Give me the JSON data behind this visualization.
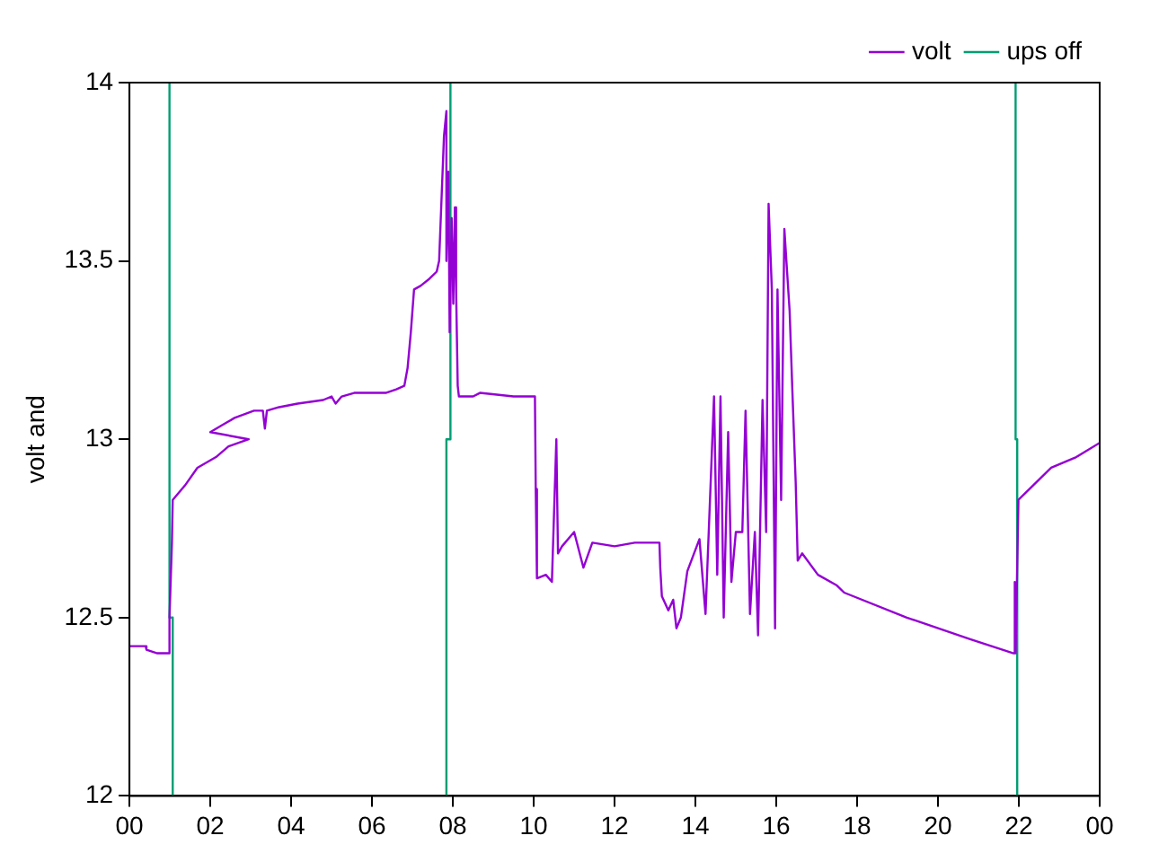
{
  "chart_data": {
    "type": "line",
    "ylabel": "volt and",
    "xlim": [
      0,
      24
    ],
    "ylim": [
      12,
      14
    ],
    "xticks": [
      {
        "value": 0,
        "label": "00"
      },
      {
        "value": 2,
        "label": "02"
      },
      {
        "value": 4,
        "label": "04"
      },
      {
        "value": 6,
        "label": "06"
      },
      {
        "value": 8,
        "label": "08"
      },
      {
        "value": 10,
        "label": "10"
      },
      {
        "value": 12,
        "label": "12"
      },
      {
        "value": 14,
        "label": "14"
      },
      {
        "value": 16,
        "label": "16"
      },
      {
        "value": 18,
        "label": "18"
      },
      {
        "value": 20,
        "label": "20"
      },
      {
        "value": 22,
        "label": "22"
      },
      {
        "value": 24,
        "label": "00"
      }
    ],
    "yticks": [
      12,
      12.5,
      13,
      13.5,
      14
    ],
    "grid": false,
    "legend": "top right",
    "marker": "none",
    "line_style": "solid",
    "series": [
      {
        "name": "volt",
        "color": "#9400d3",
        "x": [
          0,
          0.4,
          0.42,
          0.69,
          0.99,
          0.99,
          1.05,
          1.07,
          1.37,
          1.68,
          2.14,
          2.45,
          2.95,
          2.0,
          2.3,
          2.6,
          3.08,
          3.3,
          3.35,
          3.4,
          3.7,
          4.16,
          4.79,
          5.0,
          5.1,
          5.25,
          5.56,
          6.34,
          6.6,
          6.8,
          6.88,
          6.96,
          7.04,
          7.2,
          7.42,
          7.6,
          7.66,
          7.78,
          7.84,
          7.84,
          7.89,
          7.92,
          7.97,
          8.01,
          8.05,
          8.08,
          8.12,
          8.15,
          8.5,
          8.67,
          9.5,
          10.03,
          10.05,
          10.08,
          10.3,
          10.45,
          10.56,
          10.6,
          10.7,
          11.0,
          11.23,
          11.45,
          12.0,
          12.5,
          13.11,
          13.13,
          13.17,
          13.33,
          13.45,
          13.53,
          13.64,
          13.8,
          14.1,
          14.25,
          14.46,
          14.54,
          14.62,
          14.7,
          14.81,
          14.89,
          15.0,
          15.16,
          15.24,
          15.35,
          15.47,
          15.55,
          15.66,
          15.75,
          15.81,
          15.89,
          15.97,
          16.03,
          16.12,
          16.2,
          16.25,
          16.33,
          16.4,
          16.48,
          16.53,
          16.64,
          17.03,
          17.5,
          17.68,
          19.23,
          20.78,
          21.87,
          21.9,
          21.92,
          21.99,
          22.8,
          23.42,
          24.0
        ],
        "values": [
          12.42,
          12.42,
          12.41,
          12.4,
          12.4,
          12.5,
          12.71,
          12.83,
          12.87,
          12.92,
          12.95,
          12.98,
          13.0,
          13.02,
          13.04,
          13.06,
          13.08,
          13.08,
          13.03,
          13.08,
          13.09,
          13.1,
          13.11,
          13.12,
          13.1,
          13.12,
          13.13,
          13.13,
          13.14,
          13.15,
          13.2,
          13.3,
          13.42,
          13.43,
          13.45,
          13.47,
          13.5,
          13.85,
          13.92,
          13.5,
          13.75,
          13.3,
          13.62,
          13.38,
          13.65,
          13.42,
          13.15,
          13.12,
          13.12,
          13.13,
          13.12,
          13.12,
          12.86,
          12.61,
          12.62,
          12.6,
          13.0,
          12.68,
          12.7,
          12.74,
          12.64,
          12.71,
          12.7,
          12.71,
          12.71,
          12.64,
          12.56,
          12.52,
          12.55,
          12.47,
          12.5,
          12.63,
          12.72,
          12.51,
          13.12,
          12.62,
          13.12,
          12.5,
          13.02,
          12.6,
          12.74,
          12.74,
          13.08,
          12.51,
          12.74,
          12.45,
          13.11,
          12.74,
          13.66,
          13.42,
          12.47,
          13.42,
          12.83,
          13.59,
          13.5,
          13.36,
          13.13,
          12.88,
          12.66,
          12.68,
          12.62,
          12.59,
          12.57,
          12.5,
          12.44,
          12.4,
          12.6,
          12.4,
          12.83,
          12.92,
          12.95,
          12.99
        ]
      },
      {
        "name": "ups off",
        "color": "#009e73",
        "x": [
          0.99,
          0.99,
          1.07,
          1.07,
          4.0,
          7.94,
          7.94,
          7.84,
          7.84,
          15.0,
          21.92,
          21.92,
          21.96,
          21.96
        ],
        "values": [
          14,
          12.5,
          12.5,
          12,
          null,
          14,
          13.0,
          13.0,
          12,
          null,
          14,
          13.0,
          13.0,
          12
        ]
      }
    ]
  }
}
